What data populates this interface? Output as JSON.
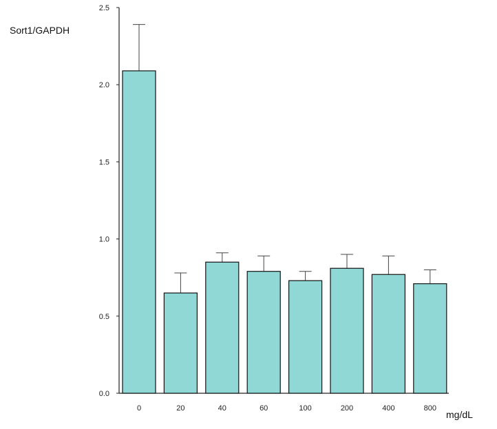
{
  "chart_data": {
    "type": "bar",
    "ylabel": "Sort1/GAPDH",
    "xunit": "mg/dL",
    "categories": [
      "0",
      "20",
      "40",
      "60",
      "100",
      "200",
      "400",
      "800"
    ],
    "values": [
      2.09,
      0.65,
      0.85,
      0.79,
      0.73,
      0.81,
      0.77,
      0.71
    ],
    "errors": [
      0.3,
      0.13,
      0.06,
      0.1,
      0.06,
      0.09,
      0.12,
      0.09
    ],
    "ylim": [
      0,
      2.5
    ],
    "yticks": [
      "0.0",
      "0.5",
      "1.0",
      "1.5",
      "2.0",
      "2.5"
    ],
    "bar_color": "#8fd8d6",
    "grid": false
  }
}
